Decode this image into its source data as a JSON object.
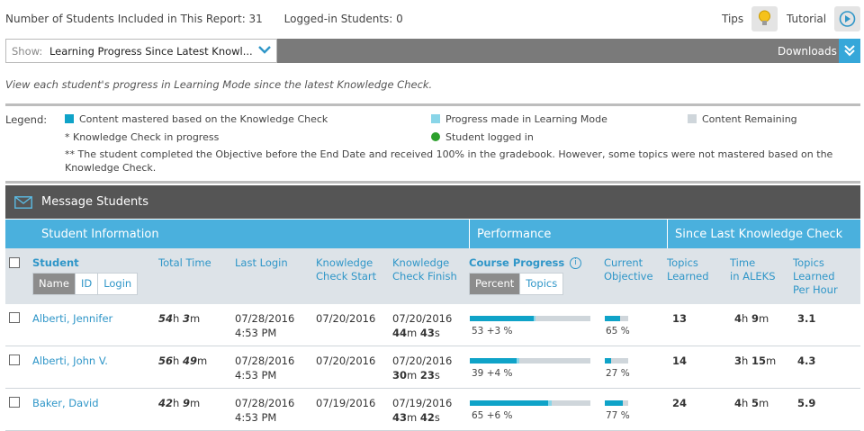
{
  "header": {
    "students_included": "Number of Students Included in This Report: 31",
    "logged_in": "Logged-in Students: 0",
    "tips_label": "Tips",
    "tutorial_label": "Tutorial"
  },
  "show": {
    "prefix": "Show:",
    "value": "Learning Progress Since Latest Knowl...",
    "downloads_label": "Downloads"
  },
  "description": "View each student's progress in Learning Mode since the latest Knowledge Check.",
  "legend": {
    "title": "Legend:",
    "mastered": "Content mastered based on the Knowledge Check",
    "progress": "Progress made in Learning Mode",
    "remaining": "Content Remaining",
    "kc_progress": "*  Knowledge Check in progress",
    "logged_in": "Student logged in",
    "note": "** The student completed the Objective before the End Date and received 100% in the gradebook. However, some topics were not mastered based on the Knowledge Check.",
    "colors": {
      "mastered": "#0fa3c8",
      "progress": "#89d5e8",
      "remaining": "#cfd6db",
      "logged_in": "#2ca02c"
    }
  },
  "message_students": "Message Students",
  "sections": {
    "student_info": "Student Information",
    "performance": "Performance",
    "since_last": "Since Last Knowledge Check"
  },
  "columns": {
    "student": "Student",
    "name_btn": "Name",
    "id_btn": "ID",
    "login_btn": "Login",
    "total_time": "Total Time",
    "last_login": "Last Login",
    "kc_start_1": "Knowledge",
    "kc_start_2": "Check Start",
    "kc_finish_1": "Knowledge",
    "kc_finish_2": "Check Finish",
    "course_progress": "Course Progress",
    "percent_btn": "Percent",
    "topics_btn": "Topics",
    "current_obj_1": "Current",
    "current_obj_2": "Objective",
    "topics_learned_1": "Topics",
    "topics_learned_2": "Learned",
    "time_aleks_1": "Time",
    "time_aleks_2": "in ALEKS",
    "tlph_1": "Topics",
    "tlph_2": "Learned",
    "tlph_3": "Per Hour"
  },
  "rows": [
    {
      "name": "Alberti, Jennifer",
      "total_h": "54",
      "total_m": "3",
      "last_login_date": "07/28/2016",
      "last_login_time": "4:53 PM",
      "kc_start": "07/20/2016",
      "kc_finish_date": "07/20/2016",
      "kc_finish_m": "44",
      "kc_finish_s": "43",
      "course_label": "53 +3 %",
      "course_mastered": 53,
      "course_progress": 3,
      "objective_label": "65 %",
      "objective_pct": 65,
      "topics_learned": "13",
      "aleks_h": "4",
      "aleks_m": "9",
      "per_hour": "3.1"
    },
    {
      "name": "Alberti, John V.",
      "total_h": "56",
      "total_m": "49",
      "last_login_date": "07/28/2016",
      "last_login_time": "4:53 PM",
      "kc_start": "07/20/2016",
      "kc_finish_date": "07/20/2016",
      "kc_finish_m": "30",
      "kc_finish_s": "23",
      "course_label": "39 +4 %",
      "course_mastered": 39,
      "course_progress": 4,
      "objective_label": "27 %",
      "objective_pct": 27,
      "topics_learned": "14",
      "aleks_h": "3",
      "aleks_m": "15",
      "per_hour": "4.3"
    },
    {
      "name": "Baker, David",
      "total_h": "42",
      "total_m": "9",
      "last_login_date": "07/28/2016",
      "last_login_time": "4:53 PM",
      "kc_start": "07/19/2016",
      "kc_finish_date": "07/19/2016",
      "kc_finish_m": "43",
      "kc_finish_s": "42",
      "course_label": "65 +6 %",
      "course_mastered": 65,
      "course_progress": 6,
      "objective_label": "77 %",
      "objective_pct": 77,
      "topics_learned": "24",
      "aleks_h": "4",
      "aleks_m": "5",
      "per_hour": "5.9"
    }
  ]
}
